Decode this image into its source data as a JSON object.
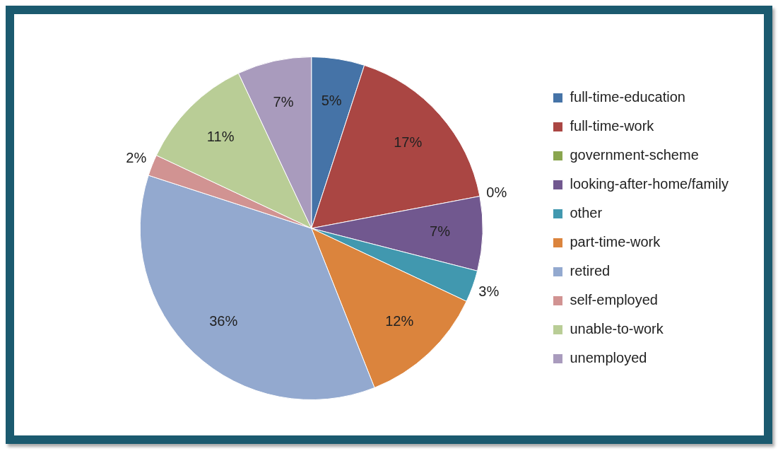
{
  "chart_data": {
    "type": "pie",
    "categories": [
      "full-time-education",
      "full-time-work",
      "government-scheme",
      "looking-after-home/family",
      "other",
      "part-time-work",
      "retired",
      "self-employed",
      "unable-to-work",
      "unemployed"
    ],
    "values": [
      5,
      17,
      0,
      7,
      3,
      12,
      36,
      2,
      11,
      7
    ],
    "value_labels": [
      "5%",
      "17%",
      "0%",
      "7%",
      "3%",
      "12%",
      "36%",
      "2%",
      "11%",
      "7%"
    ],
    "colors": [
      "#4573a7",
      "#aa4643",
      "#89a54e",
      "#71588f",
      "#4198af",
      "#db843d",
      "#93a9cf",
      "#d19392",
      "#b9cd96",
      "#a99bbd"
    ],
    "legend": "right"
  }
}
